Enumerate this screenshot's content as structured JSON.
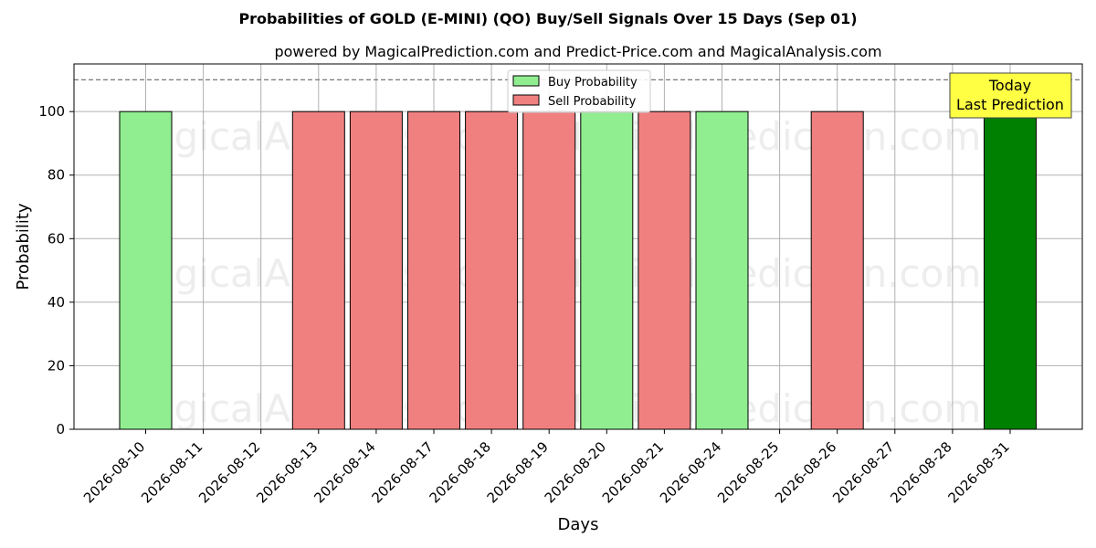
{
  "chart_data": {
    "type": "bar",
    "title": "Probabilities of GOLD (E-MINI) (QO) Buy/Sell Signals Over 15 Days (Sep 01)",
    "subtitle": "powered by MagicalPrediction.com and Predict-Price.com and MagicalAnalysis.com",
    "xlabel": "Days",
    "ylabel": "Probability",
    "ylim": [
      0,
      115
    ],
    "yticks": [
      0,
      20,
      40,
      60,
      80,
      100
    ],
    "grid": true,
    "legend_position": "top-center",
    "threshold_line": 110,
    "categories": [
      "2026-08-10",
      "2026-08-11",
      "2026-08-12",
      "2026-08-13",
      "2026-08-14",
      "2026-08-17",
      "2026-08-18",
      "2026-08-19",
      "2026-08-20",
      "2026-08-21",
      "2026-08-24",
      "2026-08-25",
      "2026-08-26",
      "2026-08-27",
      "2026-08-28",
      "2026-08-31"
    ],
    "series": [
      {
        "name": "Buy Probability",
        "color": "#90ee90",
        "values": [
          100,
          0,
          0,
          0,
          0,
          0,
          0,
          0,
          100,
          0,
          100,
          0,
          0,
          0,
          0,
          100
        ]
      },
      {
        "name": "Sell Probability",
        "color": "#f08080",
        "values": [
          0,
          0,
          0,
          100,
          100,
          100,
          100,
          100,
          0,
          100,
          0,
          0,
          100,
          0,
          0,
          0
        ]
      }
    ],
    "highlight": {
      "category": "2026-08-31",
      "color": "#008000",
      "label_line1": "Today",
      "label_line2": "Last Prediction",
      "box_color": "#ffff44"
    },
    "watermarks": [
      "MagicalAnalysis.com",
      "MagicalPrediction.com"
    ]
  }
}
